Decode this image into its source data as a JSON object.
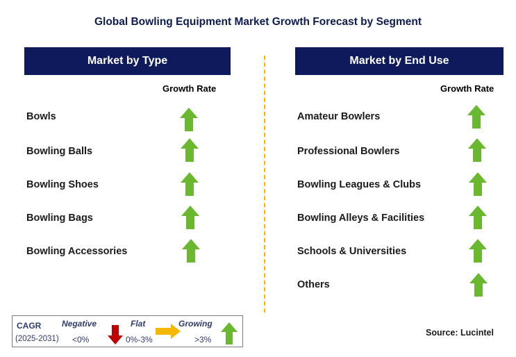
{
  "title": "Global Bowling Equipment Market Growth Forecast by Segment",
  "left_panel": {
    "header": "Market by Type",
    "column_label": "Growth Rate",
    "rows": [
      {
        "label": "Bowls",
        "trend": "growing"
      },
      {
        "label": "Bowling Balls",
        "trend": "growing"
      },
      {
        "label": "Bowling Shoes",
        "trend": "growing"
      },
      {
        "label": "Bowling Bags",
        "trend": "growing"
      },
      {
        "label": "Bowling Accessories",
        "trend": "growing"
      }
    ]
  },
  "right_panel": {
    "header": "Market by End Use",
    "column_label": "Growth Rate",
    "rows": [
      {
        "label": "Amateur Bowlers",
        "trend": "growing"
      },
      {
        "label": "Professional Bowlers",
        "trend": "growing"
      },
      {
        "label": "Bowling Leagues & Clubs",
        "trend": "growing"
      },
      {
        "label": "Bowling Alleys & Facilities",
        "trend": "growing"
      },
      {
        "label": "Schools & Universities",
        "trend": "growing"
      },
      {
        "label": "Others",
        "trend": "growing"
      }
    ]
  },
  "legend": {
    "cagr_label": "CAGR",
    "period": "(2025-2031)",
    "negative": {
      "label": "Negative",
      "range": "<0%",
      "icon": "down-arrow-icon",
      "color": "#c00000"
    },
    "flat": {
      "label": "Flat",
      "range": "0%-3%",
      "icon": "right-arrow-icon",
      "color": "#f5b800"
    },
    "growing": {
      "label": "Growing",
      "range": ">3%",
      "icon": "up-arrow-icon",
      "color": "#6ab82f"
    }
  },
  "source": "Source: Lucintel",
  "colors": {
    "header_bg": "#0e1a5c",
    "title": "#0d1b4f",
    "up_arrow": "#6ab82f",
    "divider": "#f5b800"
  }
}
